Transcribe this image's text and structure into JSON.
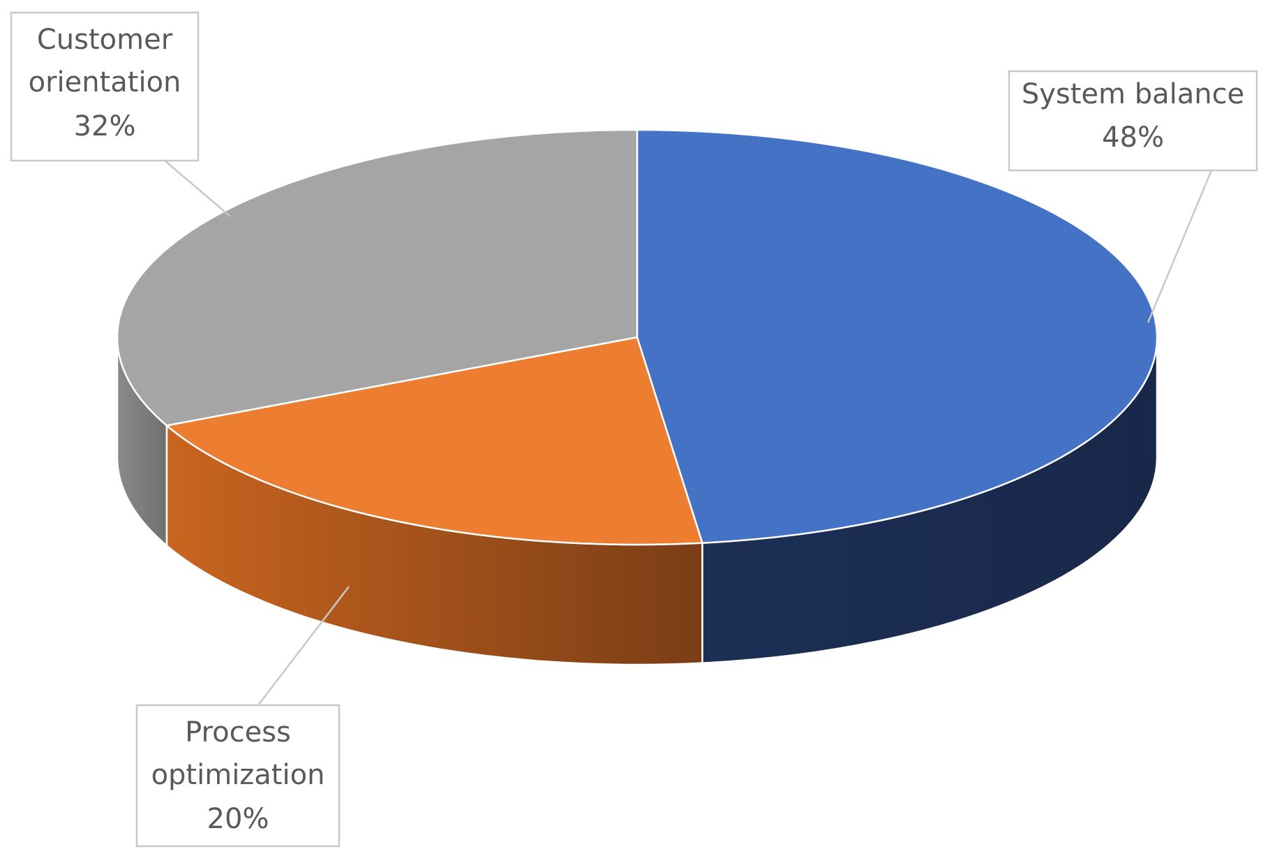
{
  "chart_data": {
    "type": "pie",
    "style": "3d",
    "slices": [
      {
        "label": "System balance",
        "value": 48,
        "value_label": "48%",
        "color": "#4472c4",
        "side_color": "#1f3864"
      },
      {
        "label": "Process optimization",
        "value": 20,
        "value_label": "20%",
        "color": "#ed7d31",
        "side_color": "#a5531f"
      },
      {
        "label": "Customer orientation",
        "value": 32,
        "value_label": "32%",
        "color": "#a5a5a5",
        "side_color": "#7f7f7f"
      }
    ],
    "data_labels": "callout",
    "legend": "none"
  }
}
